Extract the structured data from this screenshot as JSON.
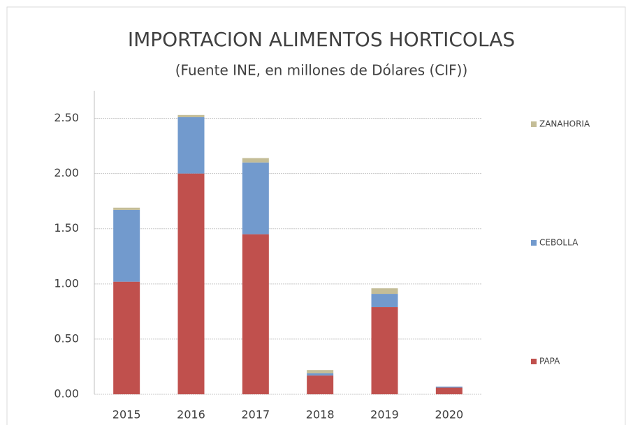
{
  "chart_data": {
    "type": "stacked_bar",
    "title": "IMPORTACION ALIMENTOS HORTICOLAS",
    "subtitle": "(Fuente INE, en millones de Dólares (CIF))",
    "categories": [
      "2015",
      "2016",
      "2017",
      "2018",
      "2019",
      "2020"
    ],
    "series": [
      {
        "name": "PAPA",
        "color": "#c0504d",
        "values": [
          1.02,
          2.0,
          1.45,
          0.17,
          0.79,
          0.06
        ]
      },
      {
        "name": "CEBOLLA",
        "color": "#729acd",
        "values": [
          0.65,
          0.51,
          0.65,
          0.02,
          0.12,
          0.01
        ]
      },
      {
        "name": "ZANAHORIA",
        "color": "#c4bd97",
        "values": [
          0.02,
          0.02,
          0.04,
          0.03,
          0.05,
          0.0
        ]
      }
    ],
    "ylim": [
      0,
      2.75
    ],
    "yticks": [
      {
        "value": 0,
        "label": "0.00"
      },
      {
        "value": 0.5,
        "label": "0.50"
      },
      {
        "value": 1,
        "label": "1.00"
      },
      {
        "value": 1.5,
        "label": "1.50"
      },
      {
        "value": 2,
        "label": "2.00"
      },
      {
        "value": 2.5,
        "label": "2.50"
      }
    ],
    "grid": true,
    "legend": "right"
  }
}
